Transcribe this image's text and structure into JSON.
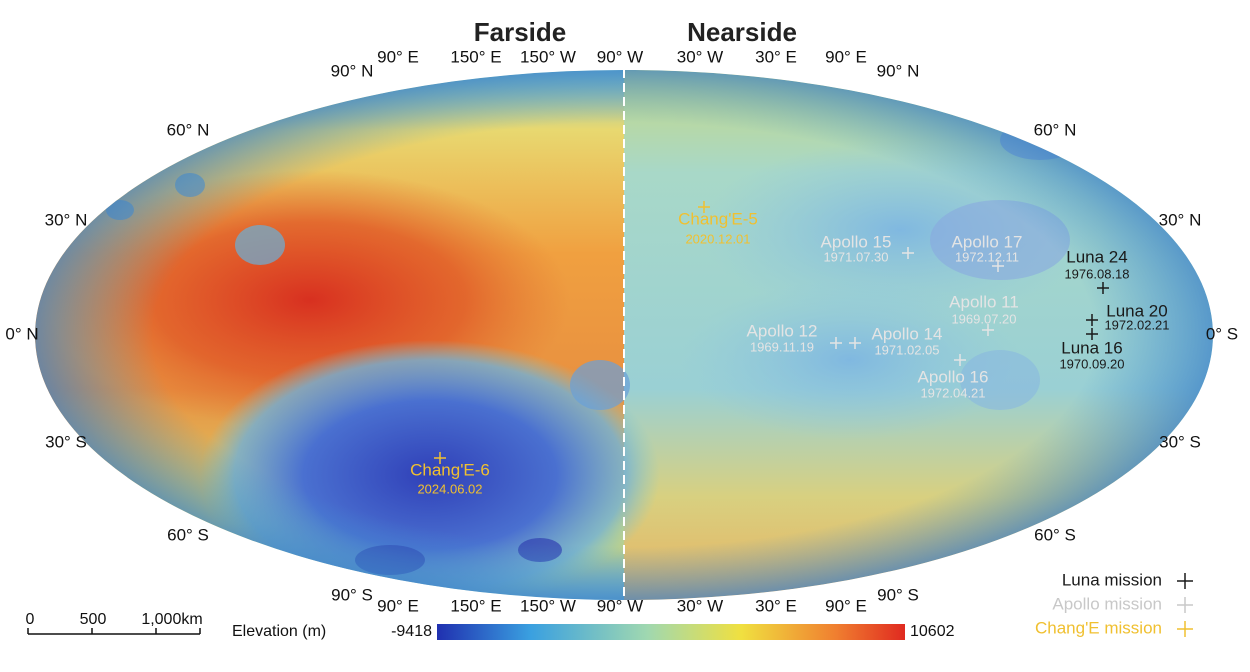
{
  "titles": {
    "farside": "Farside",
    "nearside": "Nearside"
  },
  "longitude_labels": {
    "top": [
      "90° E",
      "150° E",
      "150° W",
      "90° W",
      "30° W",
      "30° E",
      "90° E"
    ],
    "bottom": [
      "90° E",
      "150° E",
      "150° W",
      "90° W",
      "30° W",
      "30° E",
      "90° E"
    ]
  },
  "latitude_labels": {
    "left": [
      "90° N",
      "60° N",
      "30° N",
      "0° N",
      "30° S",
      "60° S",
      "90° S"
    ],
    "right": [
      "90° N",
      "60° N",
      "30° N",
      "0° S",
      "30° S",
      "60° S",
      "90° S"
    ]
  },
  "missions": [
    {
      "label": "Luna mission",
      "color": "#1a1a1a",
      "sites": [
        {
          "name": "Luna 24",
          "date": "1976.08.18"
        },
        {
          "name": "Luna 20",
          "date": "1972.02.21"
        },
        {
          "name": "Luna 16",
          "date": "1970.09.20"
        }
      ]
    },
    {
      "label": "Apollo mission",
      "color": "#e4e4e4",
      "sites": [
        {
          "name": "Apollo 15",
          "date": "1971.07.30"
        },
        {
          "name": "Apollo 17",
          "date": "1972.12.11"
        },
        {
          "name": "Apollo 11",
          "date": "1969.07.20"
        },
        {
          "name": "Apollo 12",
          "date": "1969.11.19"
        },
        {
          "name": "Apollo 14",
          "date": "1971.02.05"
        },
        {
          "name": "Apollo 16",
          "date": "1972.04.21"
        }
      ]
    },
    {
      "label": "Chang'E mission",
      "color": "#f0c030",
      "sites": [
        {
          "name": "Chang'E-5",
          "date": "2020.12.01"
        },
        {
          "name": "Chang'E-6",
          "date": "2024.06.02"
        }
      ]
    }
  ],
  "scale_bar": {
    "labels": [
      "0",
      "500",
      "1,000km"
    ]
  },
  "elevation": {
    "label": "Elevation (m)",
    "min": -9418,
    "max": 10602
  }
}
